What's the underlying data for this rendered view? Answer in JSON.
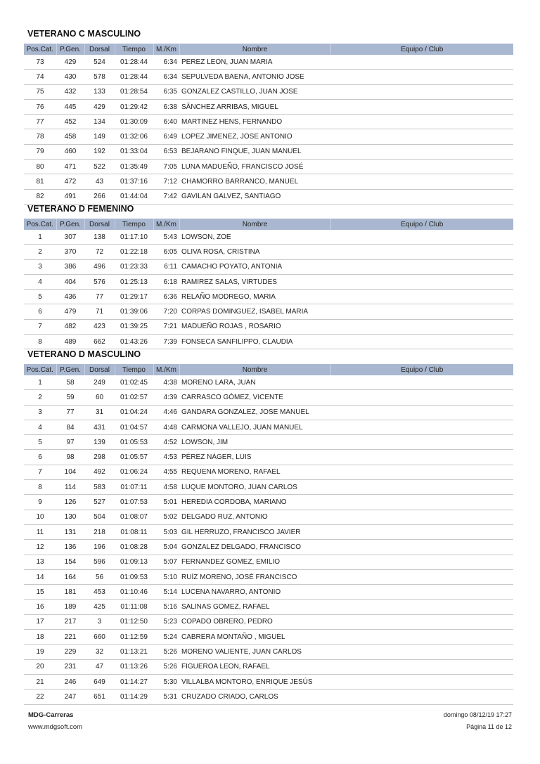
{
  "columns": [
    "Pos.Cat.",
    "P.Gen.",
    "Dorsal",
    "Tiempo",
    "M./Km",
    "Nombre",
    "Equipo / Club"
  ],
  "header_color": "#a9b8d0",
  "sections": [
    {
      "title": "VETERANO C MASCULINO",
      "rows": [
        [
          "73",
          "429",
          "524",
          "01:28:44",
          "6:34",
          "PEREZ LEON, JUAN MARIA",
          ""
        ],
        [
          "74",
          "430",
          "578",
          "01:28:44",
          "6:34",
          "SEPULVEDA BAENA, ANTONIO JOSE",
          ""
        ],
        [
          "75",
          "432",
          "133",
          "01:28:54",
          "6:35",
          "GONZALEZ CASTILLO, JUAN JOSE",
          ""
        ],
        [
          "76",
          "445",
          "429",
          "01:29:42",
          "6:38",
          "SÂNCHEZ ARRIBAS, MIGUEL",
          ""
        ],
        [
          "77",
          "452",
          "134",
          "01:30:09",
          "6:40",
          "MARTINEZ HENS, FERNANDO",
          ""
        ],
        [
          "78",
          "458",
          "149",
          "01:32:06",
          "6:49",
          "LOPEZ JIMENEZ, JOSE ANTONIO",
          ""
        ],
        [
          "79",
          "460",
          "192",
          "01:33:04",
          "6:53",
          "BEJARANO FINQUE, JUAN MANUEL",
          ""
        ],
        [
          "80",
          "471",
          "522",
          "01:35:49",
          "7:05",
          "LUNA MADUEÑO, FRANCISCO JOSÉ",
          ""
        ],
        [
          "81",
          "472",
          "43",
          "01:37:16",
          "7:12",
          "CHAMORRO BARRANCO, MANUEL",
          ""
        ],
        [
          "82",
          "491",
          "266",
          "01:44:04",
          "7:42",
          "GAVILAN GALVEZ, SANTIAGO",
          ""
        ]
      ]
    },
    {
      "title": "VETERANO D FEMENINO",
      "rows": [
        [
          "1",
          "307",
          "138",
          "01:17:10",
          "5:43",
          "LOWSON, ZOE",
          ""
        ],
        [
          "2",
          "370",
          "72",
          "01:22:18",
          "6:05",
          "OLIVA ROSA, CRISTINA",
          ""
        ],
        [
          "3",
          "386",
          "496",
          "01:23:33",
          "6:11",
          "CAMACHO POYATO, ANTONIA",
          ""
        ],
        [
          "4",
          "404",
          "576",
          "01:25:13",
          "6:18",
          "RAMIREZ SALAS, VIRTUDES",
          ""
        ],
        [
          "5",
          "436",
          "77",
          "01:29:17",
          "6:36",
          "RELAÑO MODREGO, MARIA",
          ""
        ],
        [
          "6",
          "479",
          "71",
          "01:39:06",
          "7:20",
          "CORPAS DOMINGUEZ, ISABEL MARIA",
          ""
        ],
        [
          "7",
          "482",
          "423",
          "01:39:25",
          "7:21",
          "MADUEÑO ROJAS , ROSARIO",
          ""
        ],
        [
          "8",
          "489",
          "662",
          "01:43:26",
          "7:39",
          "FONSECA SANFILIPPO, CLAUDIA",
          ""
        ]
      ]
    },
    {
      "title": "VETERANO D MASCULINO",
      "rows": [
        [
          "1",
          "58",
          "249",
          "01:02:45",
          "4:38",
          "MORENO LARA, JUAN",
          ""
        ],
        [
          "2",
          "59",
          "60",
          "01:02:57",
          "4:39",
          "CARRASCO GÓMEZ, VICENTE",
          ""
        ],
        [
          "3",
          "77",
          "31",
          "01:04:24",
          "4:46",
          "GANDARA GONZALEZ, JOSE MANUEL",
          ""
        ],
        [
          "4",
          "84",
          "431",
          "01:04:57",
          "4:48",
          "CARMONA VALLEJO, JUAN MANUEL",
          ""
        ],
        [
          "5",
          "97",
          "139",
          "01:05:53",
          "4:52",
          "LOWSON, JIM",
          ""
        ],
        [
          "6",
          "98",
          "298",
          "01:05:57",
          "4:53",
          "PÉREZ NÁGER, LUIS",
          ""
        ],
        [
          "7",
          "104",
          "492",
          "01:06:24",
          "4:55",
          "REQUENA MORENO, RAFAEL",
          ""
        ],
        [
          "8",
          "114",
          "583",
          "01:07:11",
          "4:58",
          "LUQUE MONTORO, JUAN CARLOS",
          ""
        ],
        [
          "9",
          "126",
          "527",
          "01:07:53",
          "5:01",
          "HEREDIA  CORDOBA, MARIANO",
          ""
        ],
        [
          "10",
          "130",
          "504",
          "01:08:07",
          "5:02",
          "DELGADO RUZ, ANTONIO",
          ""
        ],
        [
          "11",
          "131",
          "218",
          "01:08:11",
          "5:03",
          "GIL HERRUZO, FRANCISCO JAVIER",
          ""
        ],
        [
          "12",
          "136",
          "196",
          "01:08:28",
          "5:04",
          "GONZALEZ DELGADO, FRANCISCO",
          ""
        ],
        [
          "13",
          "154",
          "596",
          "01:09:13",
          "5:07",
          "FERNANDEZ GOMEZ, EMILIO",
          ""
        ],
        [
          "14",
          "164",
          "56",
          "01:09:53",
          "5:10",
          "RUÍZ MORENO, JOSÉ FRANCISCO",
          ""
        ],
        [
          "15",
          "181",
          "453",
          "01:10:46",
          "5:14",
          "LUCENA NAVARRO, ANTONIO",
          ""
        ],
        [
          "16",
          "189",
          "425",
          "01:11:08",
          "5:16",
          "SALINAS GOMEZ, RAFAEL",
          ""
        ],
        [
          "17",
          "217",
          "3",
          "01:12:50",
          "5:23",
          "COPADO OBRERO, PEDRO",
          ""
        ],
        [
          "18",
          "221",
          "660",
          "01:12:59",
          "5:24",
          "CABRERA MONTAÑO , MIGUEL",
          ""
        ],
        [
          "19",
          "229",
          "32",
          "01:13:21",
          "5:26",
          "MORENO VALIENTE, JUAN CARLOS",
          ""
        ],
        [
          "20",
          "231",
          "47",
          "01:13:26",
          "5:26",
          "FIGUEROA LEON, RAFAEL",
          ""
        ],
        [
          "21",
          "246",
          "649",
          "01:14:27",
          "5:30",
          "VILLALBA MONTORO, ENRIQUE JESÚS",
          ""
        ],
        [
          "22",
          "247",
          "651",
          "01:14:29",
          "5:31",
          "CRUZADO CRIADO, CARLOS",
          ""
        ]
      ]
    }
  ],
  "footer": {
    "brand": "MDG-Carreras",
    "website": "www.mdgsoft.com",
    "datetime": "domingo 08/12/19 17:27",
    "page": "Página 11 de 12"
  }
}
